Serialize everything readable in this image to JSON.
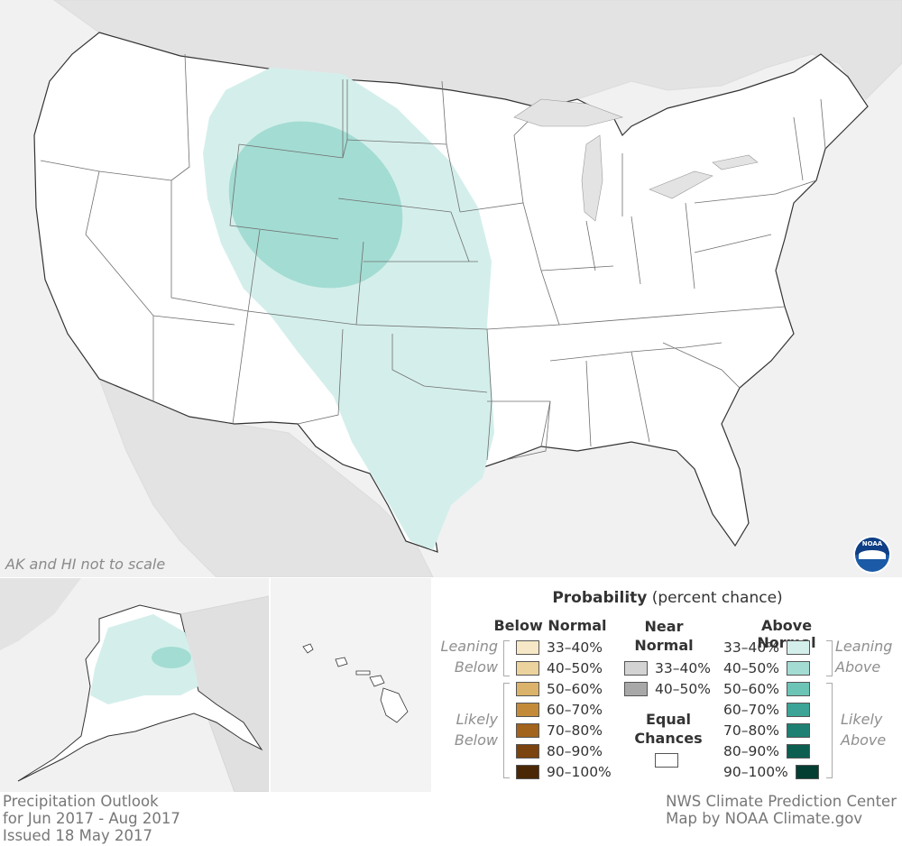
{
  "map": {
    "scale_note": "AK and HI not to scale",
    "logo_label": "NOAA",
    "colors": {
      "land": "#ffffff",
      "background": "#f1f1f1",
      "neighbor_land": "#e3e3e3",
      "leaning_above": "#d4efeb",
      "above_40_50": "#a3dcd3",
      "state_border": "#6f6f6f"
    }
  },
  "legend": {
    "title_bold": "Probability",
    "title_rest": " (percent chance)",
    "below": {
      "heading": "Below Normal",
      "leaning_label": [
        "Leaning",
        "Below"
      ],
      "likely_label": [
        "Likely",
        "Below"
      ],
      "items": [
        {
          "label": "33–40%",
          "color": "#f6e8c6"
        },
        {
          "label": "40–50%",
          "color": "#ecd29c"
        },
        {
          "label": "50–60%",
          "color": "#dcb36a"
        },
        {
          "label": "60–70%",
          "color": "#c38b39"
        },
        {
          "label": "70–80%",
          "color": "#a2631c"
        },
        {
          "label": "80–90%",
          "color": "#7b430d"
        },
        {
          "label": "90–100%",
          "color": "#4a2805"
        }
      ]
    },
    "near": {
      "heading": [
        "Near",
        "Normal"
      ],
      "items": [
        {
          "label": "33–40%",
          "color": "#d3d3d3"
        },
        {
          "label": "40–50%",
          "color": "#a8a8a8"
        }
      ]
    },
    "equal": {
      "heading": [
        "Equal",
        "Chances"
      ],
      "color": "#ffffff"
    },
    "above": {
      "heading": "Above Normal",
      "leaning_label": [
        "Leaning",
        "Above"
      ],
      "likely_label": [
        "Likely",
        "Above"
      ],
      "items": [
        {
          "label": "33–40%",
          "color": "#d4efeb"
        },
        {
          "label": "40–50%",
          "color": "#a3dcd3"
        },
        {
          "label": "50–60%",
          "color": "#6cc4b6"
        },
        {
          "label": "60–70%",
          "color": "#3ba496"
        },
        {
          "label": "70–80%",
          "color": "#1d8073"
        },
        {
          "label": "80–90%",
          "color": "#0c5e51"
        },
        {
          "label": "90–100%",
          "color": "#043d32"
        }
      ]
    }
  },
  "footer": {
    "left": [
      "Precipitation Outlook",
      "for Jun 2017 - Aug 2017",
      "Issued 18 May 2017"
    ],
    "right": [
      "NWS Climate Prediction Center",
      "Map by NOAA Climate.gov"
    ]
  }
}
